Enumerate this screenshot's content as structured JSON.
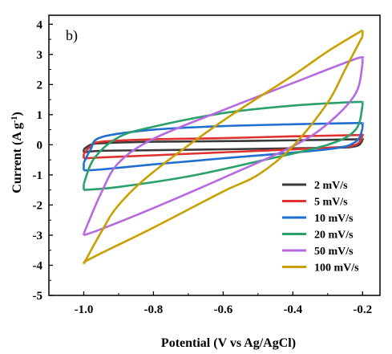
{
  "chart_data": {
    "type": "line",
    "panel_label": "b)",
    "xlabel": "Potential (V vs Ag/AgCl)",
    "ylabel_main": "Current (A g",
    "ylabel_sup": "-1",
    "ylabel_end": ")",
    "xlim": [
      -1.1,
      -0.15
    ],
    "ylim": [
      -5,
      4.3
    ],
    "x_ticks": [
      -1.0,
      -0.8,
      -0.6,
      -0.4,
      -0.2
    ],
    "x_tick_labels": [
      "-1.0",
      "-0.8",
      "-0.6",
      "-0.4",
      "-0.2"
    ],
    "y_ticks": [
      -5,
      -4,
      -3,
      -2,
      -1,
      0,
      1,
      2,
      3,
      4
    ],
    "y_tick_labels": [
      "-5",
      "-4",
      "-3",
      "-2",
      "-1",
      "0",
      "1",
      "2",
      "3",
      "4"
    ],
    "grid": false,
    "legend_position": "bottom-right",
    "series": [
      {
        "name": "2 mV/s",
        "color": "#3a3a3a",
        "upper": [
          [
            -1.0,
            -0.15
          ],
          [
            -0.98,
            0.0
          ],
          [
            -0.95,
            0.05
          ],
          [
            -0.8,
            0.1
          ],
          [
            -0.6,
            0.12
          ],
          [
            -0.4,
            0.15
          ],
          [
            -0.22,
            0.18
          ],
          [
            -0.2,
            0.2
          ]
        ],
        "lower": [
          [
            -0.2,
            0.15
          ],
          [
            -0.22,
            -0.05
          ],
          [
            -0.3,
            -0.1
          ],
          [
            -0.6,
            -0.15
          ],
          [
            -0.8,
            -0.18
          ],
          [
            -0.95,
            -0.2
          ],
          [
            -1.0,
            -0.25
          ]
        ]
      },
      {
        "name": "5 mV/s",
        "color": "#e03030",
        "upper": [
          [
            -1.0,
            -0.3
          ],
          [
            -0.98,
            -0.05
          ],
          [
            -0.95,
            0.1
          ],
          [
            -0.8,
            0.18
          ],
          [
            -0.6,
            0.22
          ],
          [
            -0.4,
            0.28
          ],
          [
            -0.22,
            0.32
          ],
          [
            -0.2,
            0.35
          ]
        ],
        "lower": [
          [
            -0.2,
            0.3
          ],
          [
            -0.22,
            0.0
          ],
          [
            -0.3,
            -0.1
          ],
          [
            -0.6,
            -0.25
          ],
          [
            -0.8,
            -0.35
          ],
          [
            -0.95,
            -0.42
          ],
          [
            -1.0,
            -0.45
          ]
        ]
      },
      {
        "name": "10 mV/s",
        "color": "#1f6fd0",
        "upper": [
          [
            -1.0,
            -0.6
          ],
          [
            -0.98,
            -0.15
          ],
          [
            -0.95,
            0.25
          ],
          [
            -0.8,
            0.5
          ],
          [
            -0.6,
            0.62
          ],
          [
            -0.4,
            0.68
          ],
          [
            -0.22,
            0.72
          ],
          [
            -0.2,
            0.7
          ]
        ],
        "lower": [
          [
            -0.2,
            0.55
          ],
          [
            -0.22,
            0.1
          ],
          [
            -0.3,
            -0.15
          ],
          [
            -0.6,
            -0.45
          ],
          [
            -0.8,
            -0.65
          ],
          [
            -0.95,
            -0.82
          ],
          [
            -1.0,
            -0.85
          ]
        ]
      },
      {
        "name": "20 mV/s",
        "color": "#2aa06a",
        "upper": [
          [
            -1.0,
            -1.3
          ],
          [
            -0.97,
            -0.45
          ],
          [
            -0.9,
            0.25
          ],
          [
            -0.8,
            0.6
          ],
          [
            -0.6,
            1.05
          ],
          [
            -0.4,
            1.3
          ],
          [
            -0.22,
            1.42
          ],
          [
            -0.2,
            1.4
          ]
        ],
        "lower": [
          [
            -0.2,
            1.3
          ],
          [
            -0.22,
            0.5
          ],
          [
            -0.3,
            0.0
          ],
          [
            -0.5,
            -0.55
          ],
          [
            -0.7,
            -1.05
          ],
          [
            -0.9,
            -1.4
          ],
          [
            -1.0,
            -1.5
          ]
        ]
      },
      {
        "name": "50 mV/s",
        "color": "#b76adf",
        "upper": [
          [
            -1.0,
            -2.95
          ],
          [
            -0.95,
            -1.6
          ],
          [
            -0.9,
            -0.6
          ],
          [
            -0.8,
            0.2
          ],
          [
            -0.6,
            1.15
          ],
          [
            -0.4,
            2.05
          ],
          [
            -0.22,
            2.85
          ],
          [
            -0.2,
            2.85
          ]
        ],
        "lower": [
          [
            -0.2,
            2.7
          ],
          [
            -0.22,
            1.7
          ],
          [
            -0.3,
            0.7
          ],
          [
            -0.4,
            -0.05
          ],
          [
            -0.6,
            -1.1
          ],
          [
            -0.8,
            -2.1
          ],
          [
            -0.95,
            -2.8
          ],
          [
            -1.0,
            -3.0
          ]
        ]
      },
      {
        "name": "100 mV/s",
        "color": "#c8a000",
        "upper": [
          [
            -1.0,
            -3.95
          ],
          [
            -0.95,
            -2.9
          ],
          [
            -0.9,
            -2.0
          ],
          [
            -0.8,
            -0.9
          ],
          [
            -0.6,
            0.8
          ],
          [
            -0.4,
            2.3
          ],
          [
            -0.3,
            3.1
          ],
          [
            -0.2,
            3.8
          ]
        ],
        "lower": [
          [
            -0.2,
            3.6
          ],
          [
            -0.25,
            2.5
          ],
          [
            -0.3,
            1.4
          ],
          [
            -0.4,
            -0.05
          ],
          [
            -0.5,
            -1.0
          ],
          [
            -0.6,
            -1.55
          ],
          [
            -0.8,
            -2.75
          ],
          [
            -0.95,
            -3.6
          ],
          [
            -1.0,
            -3.9
          ]
        ]
      }
    ]
  }
}
